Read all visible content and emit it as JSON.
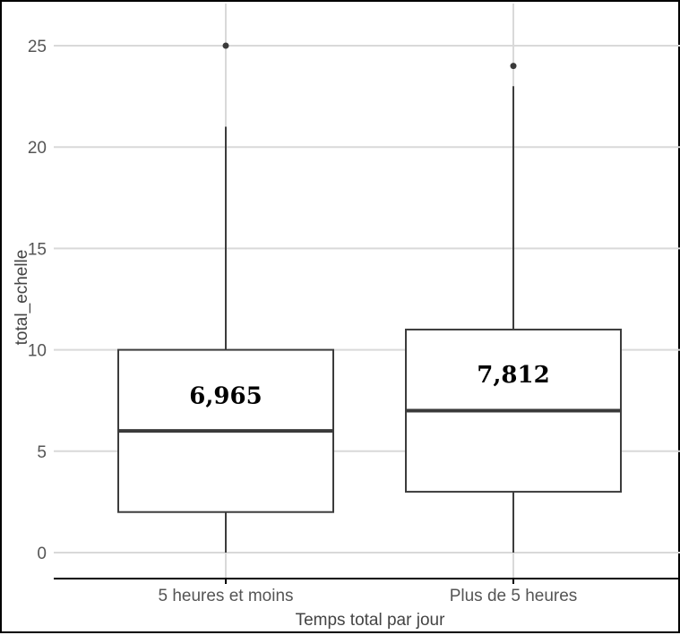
{
  "chart_data": {
    "type": "box",
    "title": "",
    "xlabel": "Temps total par jour",
    "ylabel": "total_echelle",
    "ylim": [
      -1.2,
      26.8
    ],
    "yticks": [
      0,
      5,
      10,
      15,
      20,
      25
    ],
    "ytick_labels": [
      "0",
      "5",
      "10",
      "15",
      "20",
      "25"
    ],
    "grid": true,
    "categories": [
      "5 heures et moins",
      "Plus de 5 heures"
    ],
    "boxes": [
      {
        "category": "5 heures et moins",
        "whisker_low": 0,
        "q1": 2,
        "median": 6,
        "q3": 10,
        "whisker_high": 21,
        "outliers": [
          25
        ],
        "mean_label": "6,965",
        "mean_label_y": 7.35
      },
      {
        "category": "Plus de 5 heures",
        "whisker_low": 0,
        "q1": 3,
        "median": 7,
        "q3": 11,
        "whisker_high": 23,
        "outliers": [
          24
        ],
        "mean_label": "7,812",
        "mean_label_y": 8.4
      }
    ],
    "colors": {
      "grid": "#d9d9d9",
      "box_edge": "#3c3c3c",
      "median": "#3a3a3a",
      "axis": "#000000",
      "outlier": "#3a3a3a"
    }
  }
}
